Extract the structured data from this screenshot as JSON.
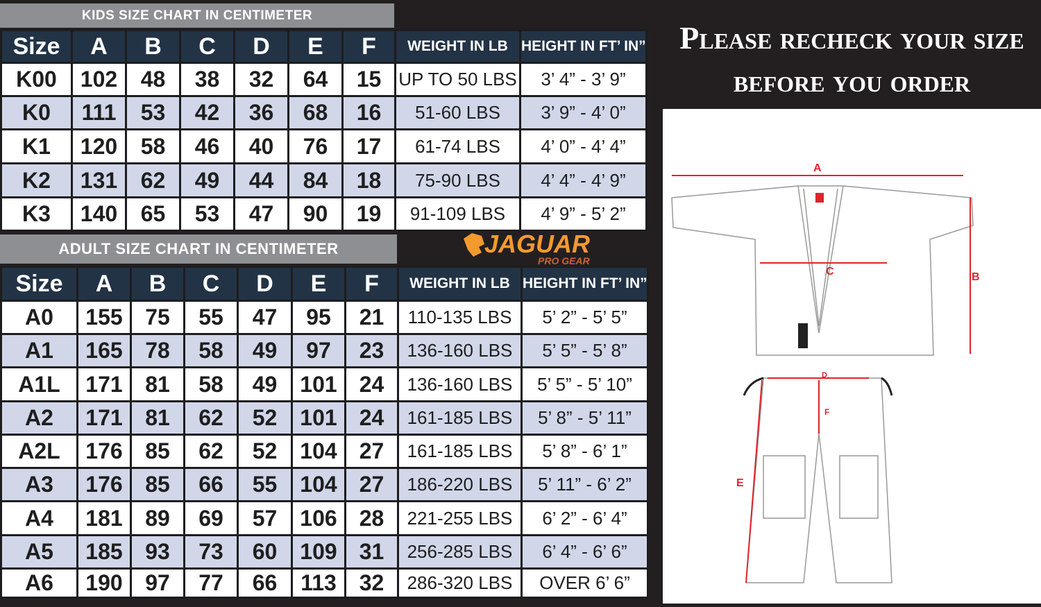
{
  "kids": {
    "title": "KIDS SIZE CHART IN CENTIMETER",
    "headers": [
      "Size",
      "A",
      "B",
      "C",
      "D",
      "E",
      "F"
    ],
    "rows": [
      [
        "K00",
        "102",
        "48",
        "38",
        "32",
        "64",
        "15"
      ],
      [
        "K0",
        "111",
        "53",
        "42",
        "36",
        "68",
        "16"
      ],
      [
        "K1",
        "120",
        "58",
        "46",
        "40",
        "76",
        "17"
      ],
      [
        "K2",
        "131",
        "62",
        "49",
        "44",
        "84",
        "18"
      ],
      [
        "K3",
        "140",
        "65",
        "53",
        "47",
        "90",
        "19"
      ]
    ],
    "wh_headers": [
      "WEIGHT IN LB",
      "HEIGHT IN FT’ IN”"
    ],
    "wh_rows": [
      [
        "UP TO 50 LBS",
        "3’ 4” - 3’ 9”"
      ],
      [
        "51-60 LBS",
        "3’ 9” - 4’ 0”"
      ],
      [
        "61-74 LBS",
        "4’ 0” - 4’ 4”"
      ],
      [
        "75-90 LBS",
        "4’ 4” - 4’ 9”"
      ],
      [
        "91-109 LBS",
        "4’ 9” - 5’ 2”"
      ]
    ]
  },
  "adult": {
    "title": "ADULT SIZE CHART IN CENTIMETER",
    "headers": [
      "Size",
      "A",
      "B",
      "C",
      "D",
      "E",
      "F"
    ],
    "rows": [
      [
        "A0",
        "155",
        "75",
        "55",
        "47",
        "95",
        "21"
      ],
      [
        "A1",
        "165",
        "78",
        "58",
        "49",
        "97",
        "23"
      ],
      [
        "A1L",
        "171",
        "81",
        "58",
        "49",
        "101",
        "24"
      ],
      [
        "A2",
        "171",
        "81",
        "62",
        "52",
        "101",
        "24"
      ],
      [
        "A2L",
        "176",
        "85",
        "62",
        "52",
        "104",
        "27"
      ],
      [
        "A3",
        "176",
        "85",
        "66",
        "55",
        "104",
        "27"
      ],
      [
        "A4",
        "181",
        "89",
        "69",
        "57",
        "106",
        "28"
      ],
      [
        "A5",
        "185",
        "93",
        "73",
        "60",
        "109",
        "31"
      ],
      [
        "A6",
        "190",
        "97",
        "77",
        "66",
        "113",
        "32"
      ]
    ],
    "wh_headers": [
      "WEIGHT IN LB",
      "HEIGHT IN FT’ IN”"
    ],
    "wh_rows": [
      [
        "110-135 LBS",
        "5’ 2” - 5’ 5”"
      ],
      [
        "136-160 LBS",
        "5’ 5” - 5’ 8”"
      ],
      [
        "136-160 LBS",
        "5’ 5” - 5’ 10”"
      ],
      [
        "161-185 LBS",
        "5’ 8” - 5’ 11”"
      ],
      [
        "161-185 LBS",
        "5’ 8” - 6’ 1”"
      ],
      [
        "186-220 LBS",
        "5’ 11” - 6’ 2”"
      ],
      [
        "221-255 LBS",
        "6’ 2” - 6’ 4”"
      ],
      [
        "256-285 LBS",
        "6’ 4” - 6’ 6”"
      ],
      [
        "286-320 LBS",
        "OVER 6’ 6”"
      ]
    ]
  },
  "notice": {
    "line1": "Please recheck your size",
    "line2": "before you order"
  },
  "logo": {
    "brand": "JAGUAR",
    "sub": "PRO GEAR",
    "color": "#f39a2e"
  },
  "diagram": {
    "labels": {
      "A": "A",
      "B": "B",
      "C": "C",
      "D": "D",
      "E": "E",
      "F": "F"
    },
    "measure_color": "#e0242b"
  }
}
